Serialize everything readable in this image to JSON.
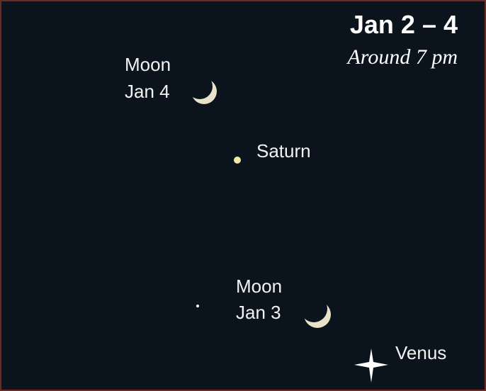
{
  "header": {
    "title": "Jan 2 – 4",
    "subtitle": "Around 7 pm"
  },
  "labels": {
    "moon_jan4": [
      "Moon",
      "Jan 4"
    ],
    "saturn": "Saturn",
    "moon_jan3": [
      "Moon",
      "Jan 3"
    ],
    "venus": "Venus"
  }
}
